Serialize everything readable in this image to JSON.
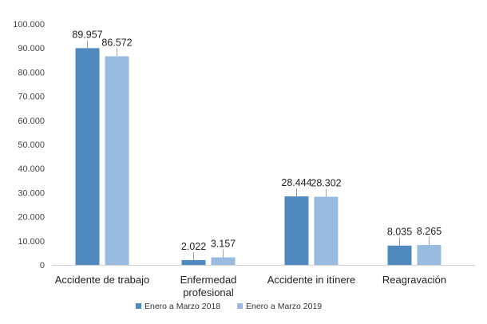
{
  "chart_data": {
    "type": "bar",
    "categories": [
      [
        "Accidente de trabajo"
      ],
      [
        "Enfermedad",
        "profesional"
      ],
      [
        "Accidente in itínere"
      ],
      [
        "Reagravación"
      ]
    ],
    "series": [
      {
        "name": "Enero a Marzo 2018",
        "color": "#4f89be",
        "values": [
          89957,
          2022,
          28444,
          8035
        ],
        "labels": [
          "89.957",
          "2.022",
          "28.444",
          "8.035"
        ]
      },
      {
        "name": "Enero a Marzo 2019",
        "color": "#99bbe0",
        "values": [
          86572,
          3157,
          28302,
          8265
        ],
        "labels": [
          "86.572",
          "3.157",
          "28.302",
          "8.265"
        ]
      }
    ],
    "ylim": [
      0,
      100000
    ],
    "yticks": [
      0,
      10000,
      20000,
      30000,
      40000,
      50000,
      60000,
      70000,
      80000,
      90000,
      100000
    ],
    "ytick_labels": [
      "0",
      "10.000",
      "20.000",
      "30.000",
      "40.000",
      "50.000",
      "60.000",
      "70.000",
      "80.000",
      "90.000",
      "100.000"
    ],
    "grid": false,
    "legend_position": "bottom",
    "xlabel": "",
    "ylabel": "",
    "title": ""
  }
}
